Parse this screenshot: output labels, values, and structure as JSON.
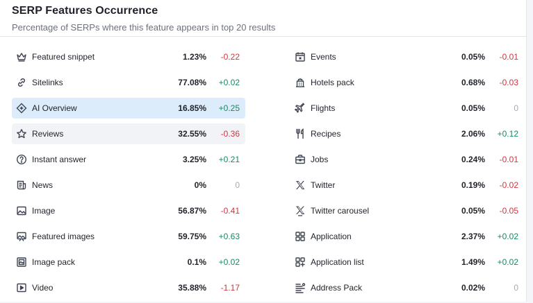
{
  "header": {
    "title": "SERP Features Occurrence",
    "subtitle": "Percentage of SERPs where this feature appears in top 20 results"
  },
  "left": [
    {
      "label": "Featured snippet",
      "pct": "1.23%",
      "delta": "-0.22",
      "icon": "crown-icon"
    },
    {
      "label": "Sitelinks",
      "pct": "77.08%",
      "delta": "+0.02",
      "icon": "link-icon"
    },
    {
      "label": "AI Overview",
      "pct": "16.85%",
      "delta": "+0.25",
      "icon": "ai-overview-icon"
    },
    {
      "label": "Reviews",
      "pct": "32.55%",
      "delta": "-0.36",
      "icon": "star-icon"
    },
    {
      "label": "Instant answer",
      "pct": "3.25%",
      "delta": "+0.21",
      "icon": "question-icon"
    },
    {
      "label": "News",
      "pct": "0%",
      "delta": "0",
      "icon": "news-icon"
    },
    {
      "label": "Image",
      "pct": "56.87%",
      "delta": "-0.41",
      "icon": "image-icon"
    },
    {
      "label": "Featured images",
      "pct": "59.75%",
      "delta": "+0.63",
      "icon": "featured-images-icon"
    },
    {
      "label": "Image pack",
      "pct": "0.1%",
      "delta": "+0.02",
      "icon": "image-pack-icon"
    },
    {
      "label": "Video",
      "pct": "35.88%",
      "delta": "-1.17",
      "icon": "video-icon"
    }
  ],
  "right": [
    {
      "label": "Events",
      "pct": "0.05%",
      "delta": "-0.01",
      "icon": "calendar-icon"
    },
    {
      "label": "Hotels pack",
      "pct": "0.68%",
      "delta": "-0.03",
      "icon": "hotel-icon"
    },
    {
      "label": "Flights",
      "pct": "0.05%",
      "delta": "0",
      "icon": "plane-icon"
    },
    {
      "label": "Recipes",
      "pct": "2.06%",
      "delta": "+0.12",
      "icon": "fork-knife-icon"
    },
    {
      "label": "Jobs",
      "pct": "0.24%",
      "delta": "-0.01",
      "icon": "briefcase-icon"
    },
    {
      "label": "Twitter",
      "pct": "0.19%",
      "delta": "-0.02",
      "icon": "x-icon"
    },
    {
      "label": "Twitter carousel",
      "pct": "0.05%",
      "delta": "-0.05",
      "icon": "x-carousel-icon"
    },
    {
      "label": "Application",
      "pct": "2.37%",
      "delta": "+0.02",
      "icon": "app-grid-icon"
    },
    {
      "label": "Application list",
      "pct": "1.49%",
      "delta": "+0.02",
      "icon": "app-list-icon"
    },
    {
      "label": "Address Pack",
      "pct": "0.02%",
      "delta": "0",
      "icon": "address-pack-icon"
    }
  ],
  "state": {
    "active_row": "AI Overview",
    "hover_row": "Reviews"
  },
  "colors": {
    "negative": "#d0343e",
    "positive": "#148a5f",
    "neutral": "#a4a8b1",
    "active_bg": "#dcecfb",
    "hover_bg": "#f2f3f6"
  }
}
